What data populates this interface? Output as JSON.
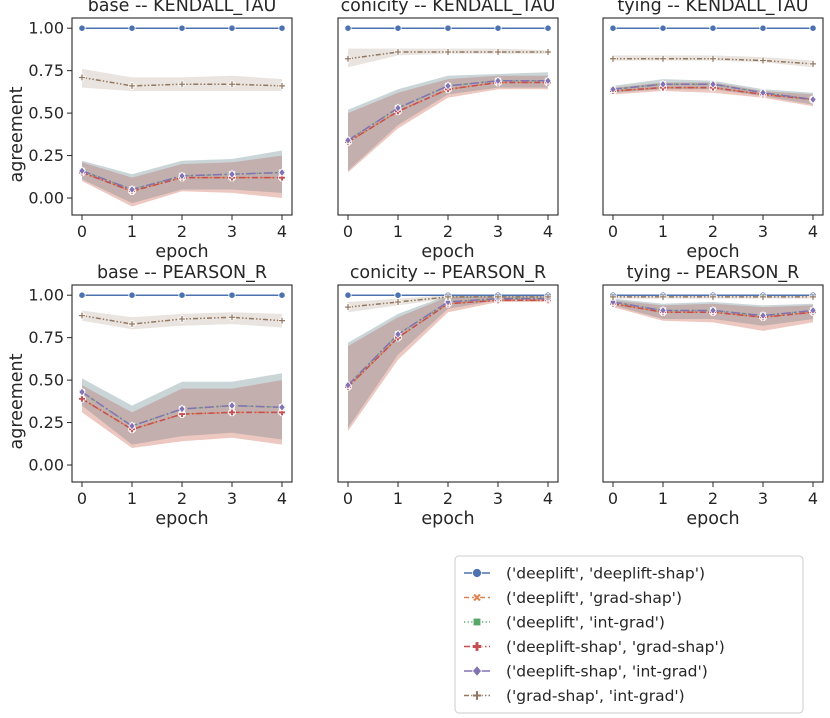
{
  "figure": {
    "x_ticks": [
      0,
      1,
      2,
      3,
      4
    ],
    "y_ticks": [
      0.0,
      0.25,
      0.5,
      0.75,
      1.0
    ],
    "y_tick_labels": [
      "0.00",
      "0.25",
      "0.50",
      "0.75",
      "1.00"
    ],
    "xlabel": "epoch",
    "ylabel": "agreement"
  },
  "legend": {
    "position": "bottom-right",
    "entries": [
      {
        "label": "('deeplift', 'deeplift-shap')",
        "color": "#4c72b0",
        "marker": "circle",
        "dash": "solid"
      },
      {
        "label": "('deeplift', 'grad-shap')",
        "color": "#dd8452",
        "marker": "x",
        "dash": "dashed"
      },
      {
        "label": "('deeplift', 'int-grad')",
        "color": "#55a868",
        "marker": "square",
        "dash": "dotted"
      },
      {
        "label": "('deeplift-shap', 'grad-shap')",
        "color": "#c44e52",
        "marker": "plus",
        "dash": "dashdot"
      },
      {
        "label": "('deeplift-shap', 'int-grad')",
        "color": "#8172b3",
        "marker": "diamond",
        "dash": "longdashdot"
      },
      {
        "label": "('grad-shap', 'int-grad')",
        "color": "#937860",
        "marker": "pluslight",
        "dash": "dashdotdot"
      }
    ]
  },
  "chart_data": [
    {
      "type": "line",
      "title": "base -- KENDALL_TAU",
      "xlabel": "epoch",
      "ylabel": "agreement",
      "x": [
        0,
        1,
        2,
        3,
        4
      ],
      "ylim": [
        -0.1,
        1.06
      ],
      "series": [
        {
          "name": "('deeplift', 'deeplift-shap')",
          "values": [
            1.0,
            1.0,
            1.0,
            1.0,
            1.0
          ],
          "lo": [
            1.0,
            1.0,
            1.0,
            1.0,
            1.0
          ],
          "hi": [
            1.0,
            1.0,
            1.0,
            1.0,
            1.0
          ]
        },
        {
          "name": "('deeplift', 'grad-shap')",
          "values": [
            0.15,
            0.04,
            0.12,
            0.12,
            0.12
          ],
          "lo": [
            0.1,
            -0.05,
            0.04,
            0.03,
            0.0
          ],
          "hi": [
            0.21,
            0.12,
            0.2,
            0.21,
            0.25
          ]
        },
        {
          "name": "('deeplift', 'int-grad')",
          "values": [
            0.16,
            0.05,
            0.13,
            0.14,
            0.15
          ],
          "lo": [
            0.11,
            -0.03,
            0.05,
            0.05,
            0.03
          ],
          "hi": [
            0.22,
            0.14,
            0.22,
            0.23,
            0.28
          ]
        },
        {
          "name": "('deeplift-shap', 'grad-shap')",
          "values": [
            0.15,
            0.04,
            0.12,
            0.12,
            0.12
          ],
          "lo": [
            0.1,
            -0.05,
            0.04,
            0.03,
            0.0
          ],
          "hi": [
            0.21,
            0.12,
            0.2,
            0.21,
            0.25
          ]
        },
        {
          "name": "('deeplift-shap', 'int-grad')",
          "values": [
            0.16,
            0.05,
            0.13,
            0.14,
            0.15
          ],
          "lo": [
            0.11,
            -0.03,
            0.05,
            0.05,
            0.03
          ],
          "hi": [
            0.22,
            0.14,
            0.22,
            0.23,
            0.28
          ]
        },
        {
          "name": "('grad-shap', 'int-grad')",
          "values": [
            0.71,
            0.66,
            0.67,
            0.67,
            0.66
          ],
          "lo": [
            0.65,
            0.63,
            0.63,
            0.63,
            0.63
          ],
          "hi": [
            0.76,
            0.71,
            0.71,
            0.72,
            0.7
          ]
        }
      ]
    },
    {
      "type": "line",
      "title": "conicity -- KENDALL_TAU",
      "xlabel": "epoch",
      "ylabel": "",
      "x": [
        0,
        1,
        2,
        3,
        4
      ],
      "ylim": [
        -0.1,
        1.06
      ],
      "series": [
        {
          "name": "('deeplift', 'deeplift-shap')",
          "values": [
            1.0,
            1.0,
            1.0,
            1.0,
            1.0
          ],
          "lo": [
            1.0,
            1.0,
            1.0,
            1.0,
            1.0
          ],
          "hi": [
            1.0,
            1.0,
            1.0,
            1.0,
            1.0
          ]
        },
        {
          "name": "('deeplift', 'grad-shap')",
          "values": [
            0.33,
            0.51,
            0.64,
            0.68,
            0.68
          ],
          "lo": [
            0.15,
            0.41,
            0.59,
            0.64,
            0.64
          ],
          "hi": [
            0.5,
            0.62,
            0.7,
            0.72,
            0.72
          ]
        },
        {
          "name": "('deeplift', 'int-grad')",
          "values": [
            0.34,
            0.53,
            0.66,
            0.69,
            0.69
          ],
          "lo": [
            0.16,
            0.43,
            0.61,
            0.65,
            0.65
          ],
          "hi": [
            0.52,
            0.64,
            0.72,
            0.73,
            0.74
          ]
        },
        {
          "name": "('deeplift-shap', 'grad-shap')",
          "values": [
            0.33,
            0.51,
            0.64,
            0.68,
            0.68
          ],
          "lo": [
            0.15,
            0.41,
            0.59,
            0.64,
            0.64
          ],
          "hi": [
            0.5,
            0.62,
            0.7,
            0.72,
            0.72
          ]
        },
        {
          "name": "('deeplift-shap', 'int-grad')",
          "values": [
            0.34,
            0.53,
            0.66,
            0.69,
            0.69
          ],
          "lo": [
            0.16,
            0.43,
            0.61,
            0.65,
            0.65
          ],
          "hi": [
            0.52,
            0.64,
            0.72,
            0.73,
            0.74
          ]
        },
        {
          "name": "('grad-shap', 'int-grad')",
          "values": [
            0.82,
            0.86,
            0.86,
            0.86,
            0.86
          ],
          "lo": [
            0.77,
            0.84,
            0.85,
            0.85,
            0.85
          ],
          "hi": [
            0.88,
            0.88,
            0.88,
            0.88,
            0.87
          ]
        }
      ]
    },
    {
      "type": "line",
      "title": "tying -- KENDALL_TAU",
      "xlabel": "epoch",
      "ylabel": "",
      "x": [
        0,
        1,
        2,
        3,
        4
      ],
      "ylim": [
        -0.1,
        1.06
      ],
      "series": [
        {
          "name": "('deeplift', 'deeplift-shap')",
          "values": [
            1.0,
            1.0,
            1.0,
            1.0,
            1.0
          ],
          "lo": [
            1.0,
            1.0,
            1.0,
            1.0,
            1.0
          ],
          "hi": [
            1.0,
            1.0,
            1.0,
            1.0,
            1.0
          ]
        },
        {
          "name": "('deeplift', 'grad-shap')",
          "values": [
            0.63,
            0.65,
            0.65,
            0.61,
            0.58
          ],
          "lo": [
            0.61,
            0.63,
            0.62,
            0.59,
            0.54
          ],
          "hi": [
            0.65,
            0.68,
            0.68,
            0.63,
            0.61
          ]
        },
        {
          "name": "('deeplift', 'int-grad')",
          "values": [
            0.64,
            0.67,
            0.67,
            0.62,
            0.58
          ],
          "lo": [
            0.62,
            0.64,
            0.64,
            0.6,
            0.55
          ],
          "hi": [
            0.66,
            0.7,
            0.69,
            0.64,
            0.62
          ]
        },
        {
          "name": "('deeplift-shap', 'grad-shap')",
          "values": [
            0.63,
            0.65,
            0.65,
            0.61,
            0.58
          ],
          "lo": [
            0.61,
            0.63,
            0.62,
            0.59,
            0.54
          ],
          "hi": [
            0.65,
            0.68,
            0.68,
            0.63,
            0.61
          ]
        },
        {
          "name": "('deeplift-shap', 'int-grad')",
          "values": [
            0.64,
            0.67,
            0.67,
            0.62,
            0.58
          ],
          "lo": [
            0.62,
            0.64,
            0.64,
            0.6,
            0.55
          ],
          "hi": [
            0.66,
            0.7,
            0.69,
            0.64,
            0.62
          ]
        },
        {
          "name": "('grad-shap', 'int-grad')",
          "values": [
            0.82,
            0.82,
            0.82,
            0.81,
            0.79
          ],
          "lo": [
            0.81,
            0.81,
            0.81,
            0.8,
            0.77
          ],
          "hi": [
            0.84,
            0.84,
            0.84,
            0.83,
            0.81
          ]
        }
      ]
    },
    {
      "type": "line",
      "title": "base -- PEARSON_R",
      "xlabel": "epoch",
      "ylabel": "agreement",
      "x": [
        0,
        1,
        2,
        3,
        4
      ],
      "ylim": [
        -0.1,
        1.06
      ],
      "series": [
        {
          "name": "('deeplift', 'deeplift-shap')",
          "values": [
            1.0,
            1.0,
            1.0,
            1.0,
            1.0
          ],
          "lo": [
            1.0,
            1.0,
            1.0,
            1.0,
            1.0
          ],
          "hi": [
            1.0,
            1.0,
            1.0,
            1.0,
            1.0
          ]
        },
        {
          "name": "('deeplift', 'grad-shap')",
          "values": [
            0.39,
            0.21,
            0.3,
            0.31,
            0.31
          ],
          "lo": [
            0.31,
            0.1,
            0.14,
            0.16,
            0.12
          ],
          "hi": [
            0.47,
            0.31,
            0.45,
            0.45,
            0.5
          ]
        },
        {
          "name": "('deeplift', 'int-grad')",
          "values": [
            0.43,
            0.23,
            0.33,
            0.35,
            0.34
          ],
          "lo": [
            0.35,
            0.12,
            0.17,
            0.19,
            0.15
          ],
          "hi": [
            0.51,
            0.35,
            0.49,
            0.49,
            0.54
          ]
        },
        {
          "name": "('deeplift-shap', 'grad-shap')",
          "values": [
            0.39,
            0.21,
            0.3,
            0.31,
            0.31
          ],
          "lo": [
            0.31,
            0.1,
            0.14,
            0.16,
            0.12
          ],
          "hi": [
            0.47,
            0.31,
            0.45,
            0.45,
            0.5
          ]
        },
        {
          "name": "('deeplift-shap', 'int-grad')",
          "values": [
            0.43,
            0.23,
            0.33,
            0.35,
            0.34
          ],
          "lo": [
            0.35,
            0.12,
            0.17,
            0.19,
            0.15
          ],
          "hi": [
            0.51,
            0.35,
            0.49,
            0.49,
            0.54
          ]
        },
        {
          "name": "('grad-shap', 'int-grad')",
          "values": [
            0.88,
            0.83,
            0.86,
            0.87,
            0.85
          ],
          "lo": [
            0.85,
            0.8,
            0.82,
            0.83,
            0.81
          ],
          "hi": [
            0.91,
            0.87,
            0.89,
            0.9,
            0.89
          ]
        }
      ]
    },
    {
      "type": "line",
      "title": "conicity -- PEARSON_R",
      "xlabel": "epoch",
      "ylabel": "",
      "x": [
        0,
        1,
        2,
        3,
        4
      ],
      "ylim": [
        -0.1,
        1.06
      ],
      "series": [
        {
          "name": "('deeplift', 'deeplift-shap')",
          "values": [
            1.0,
            1.0,
            1.0,
            1.0,
            1.0
          ],
          "lo": [
            1.0,
            1.0,
            1.0,
            1.0,
            1.0
          ],
          "hi": [
            1.0,
            1.0,
            1.0,
            1.0,
            1.0
          ]
        },
        {
          "name": "('deeplift', 'grad-shap')",
          "values": [
            0.46,
            0.75,
            0.95,
            0.97,
            0.97
          ],
          "lo": [
            0.2,
            0.62,
            0.9,
            0.96,
            0.96
          ],
          "hi": [
            0.7,
            0.87,
            0.99,
            0.99,
            0.99
          ]
        },
        {
          "name": "('deeplift', 'int-grad')",
          "values": [
            0.47,
            0.77,
            0.96,
            0.98,
            0.98
          ],
          "lo": [
            0.22,
            0.65,
            0.92,
            0.97,
            0.97
          ],
          "hi": [
            0.72,
            0.89,
            1.0,
            1.0,
            1.0
          ]
        },
        {
          "name": "('deeplift-shap', 'grad-shap')",
          "values": [
            0.46,
            0.75,
            0.95,
            0.97,
            0.97
          ],
          "lo": [
            0.2,
            0.62,
            0.9,
            0.96,
            0.96
          ],
          "hi": [
            0.7,
            0.87,
            0.99,
            0.99,
            0.99
          ]
        },
        {
          "name": "('deeplift-shap', 'int-grad')",
          "values": [
            0.47,
            0.77,
            0.96,
            0.98,
            0.98
          ],
          "lo": [
            0.22,
            0.65,
            0.92,
            0.97,
            0.97
          ],
          "hi": [
            0.72,
            0.89,
            1.0,
            1.0,
            1.0
          ]
        },
        {
          "name": "('grad-shap', 'int-grad')",
          "values": [
            0.93,
            0.96,
            0.99,
            0.99,
            0.99
          ],
          "lo": [
            0.9,
            0.94,
            0.98,
            0.99,
            0.99
          ],
          "hi": [
            0.96,
            0.98,
            1.0,
            1.0,
            1.0
          ]
        }
      ]
    },
    {
      "type": "line",
      "title": "tying -- PEARSON_R",
      "xlabel": "epoch",
      "ylabel": "",
      "x": [
        0,
        1,
        2,
        3,
        4
      ],
      "ylim": [
        -0.1,
        1.06
      ],
      "series": [
        {
          "name": "('deeplift', 'deeplift-shap')",
          "values": [
            1.0,
            1.0,
            1.0,
            1.0,
            1.0
          ],
          "lo": [
            1.0,
            1.0,
            1.0,
            1.0,
            1.0
          ],
          "hi": [
            1.0,
            1.0,
            1.0,
            1.0,
            1.0
          ]
        },
        {
          "name": "('deeplift', 'grad-shap')",
          "values": [
            0.95,
            0.9,
            0.9,
            0.87,
            0.9
          ],
          "lo": [
            0.93,
            0.85,
            0.84,
            0.79,
            0.84
          ],
          "hi": [
            0.97,
            0.94,
            0.95,
            0.93,
            0.94
          ]
        },
        {
          "name": "('deeplift', 'int-grad')",
          "values": [
            0.96,
            0.91,
            0.91,
            0.88,
            0.91
          ],
          "lo": [
            0.94,
            0.86,
            0.86,
            0.82,
            0.86
          ],
          "hi": [
            0.98,
            0.95,
            0.96,
            0.94,
            0.95
          ]
        },
        {
          "name": "('deeplift-shap', 'grad-shap')",
          "values": [
            0.95,
            0.9,
            0.9,
            0.87,
            0.9
          ],
          "lo": [
            0.93,
            0.85,
            0.84,
            0.79,
            0.84
          ],
          "hi": [
            0.97,
            0.94,
            0.95,
            0.93,
            0.94
          ]
        },
        {
          "name": "('deeplift-shap', 'int-grad')",
          "values": [
            0.96,
            0.91,
            0.91,
            0.88,
            0.91
          ],
          "lo": [
            0.94,
            0.86,
            0.86,
            0.82,
            0.86
          ],
          "hi": [
            0.98,
            0.95,
            0.96,
            0.94,
            0.95
          ]
        },
        {
          "name": "('grad-shap', 'int-grad')",
          "values": [
            0.99,
            0.99,
            0.99,
            0.99,
            0.99
          ],
          "lo": [
            0.98,
            0.98,
            0.98,
            0.98,
            0.98
          ],
          "hi": [
            1.0,
            1.0,
            1.0,
            1.0,
            1.0
          ]
        }
      ]
    }
  ]
}
